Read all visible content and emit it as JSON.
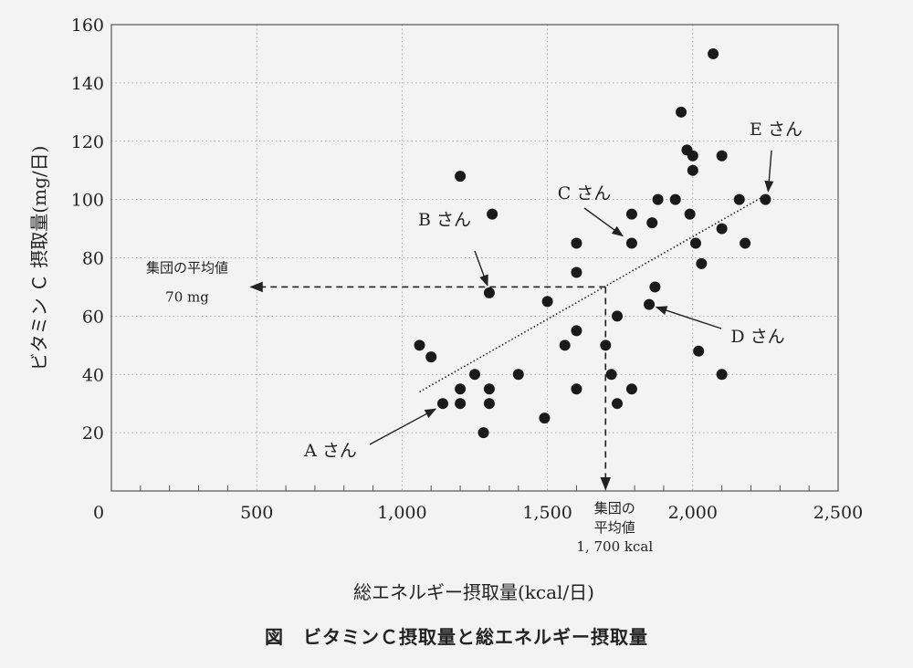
{
  "chart_data": {
    "type": "scatter",
    "title": "図　ビタミンＣ摂取量と総エネルギー摂取量",
    "xlabel": "総エネルギー摂取量(kcal/日)",
    "ylabel": "ビタミン Ｃ 摂取量(mg/日)",
    "xlim": [
      0,
      2500
    ],
    "ylim": [
      0,
      160
    ],
    "x_ticks": [
      0,
      500,
      1000,
      1500,
      2000,
      2500
    ],
    "x_tick_labels": [
      "0",
      "500",
      "1,000",
      "1,500",
      "2,000",
      "2,500"
    ],
    "y_ticks": [
      20,
      40,
      60,
      80,
      100,
      120,
      140,
      160
    ],
    "y_tick_labels": [
      "20",
      "40",
      "60",
      "80",
      "100",
      "120",
      "140",
      "160"
    ],
    "grid": true,
    "points": [
      {
        "x": 1060,
        "y": 50
      },
      {
        "x": 1100,
        "y": 46
      },
      {
        "x": 1140,
        "y": 30
      },
      {
        "x": 1200,
        "y": 108
      },
      {
        "x": 1200,
        "y": 35
      },
      {
        "x": 1200,
        "y": 30
      },
      {
        "x": 1250,
        "y": 40
      },
      {
        "x": 1280,
        "y": 20
      },
      {
        "x": 1300,
        "y": 68
      },
      {
        "x": 1300,
        "y": 35
      },
      {
        "x": 1300,
        "y": 30
      },
      {
        "x": 1310,
        "y": 95
      },
      {
        "x": 1400,
        "y": 40
      },
      {
        "x": 1490,
        "y": 25
      },
      {
        "x": 1500,
        "y": 65
      },
      {
        "x": 1560,
        "y": 50
      },
      {
        "x": 1600,
        "y": 85
      },
      {
        "x": 1600,
        "y": 75
      },
      {
        "x": 1600,
        "y": 55
      },
      {
        "x": 1600,
        "y": 35
      },
      {
        "x": 1700,
        "y": 50
      },
      {
        "x": 1720,
        "y": 40
      },
      {
        "x": 1740,
        "y": 60
      },
      {
        "x": 1740,
        "y": 30
      },
      {
        "x": 1790,
        "y": 95
      },
      {
        "x": 1790,
        "y": 85
      },
      {
        "x": 1790,
        "y": 35
      },
      {
        "x": 1850,
        "y": 64
      },
      {
        "x": 1860,
        "y": 92
      },
      {
        "x": 1870,
        "y": 70
      },
      {
        "x": 1880,
        "y": 100
      },
      {
        "x": 1940,
        "y": 100
      },
      {
        "x": 1960,
        "y": 130
      },
      {
        "x": 1980,
        "y": 117
      },
      {
        "x": 1990,
        "y": 95
      },
      {
        "x": 2000,
        "y": 115
      },
      {
        "x": 2000,
        "y": 110
      },
      {
        "x": 2010,
        "y": 85
      },
      {
        "x": 2020,
        "y": 48
      },
      {
        "x": 2030,
        "y": 78
      },
      {
        "x": 2070,
        "y": 150
      },
      {
        "x": 2100,
        "y": 115
      },
      {
        "x": 2100,
        "y": 90
      },
      {
        "x": 2100,
        "y": 40
      },
      {
        "x": 2160,
        "y": 100
      },
      {
        "x": 2180,
        "y": 85
      },
      {
        "x": 2250,
        "y": 100
      }
    ],
    "trend_line": {
      "x": [
        1060,
        2260
      ],
      "y": [
        34,
        102
      ]
    },
    "annotations": [
      {
        "label": "A さん",
        "point": {
          "x": 1140,
          "y": 30
        }
      },
      {
        "label": "B さん",
        "point": {
          "x": 1300,
          "y": 68
        }
      },
      {
        "label": "C さん",
        "point": {
          "x": 1790,
          "y": 85
        }
      },
      {
        "label": "D さん",
        "point": {
          "x": 1850,
          "y": 64
        }
      },
      {
        "label": "E さん",
        "point": {
          "x": 2250,
          "y": 100
        }
      }
    ],
    "mean_y": {
      "value": 70,
      "label_line1": "集団の平均値",
      "label_line2": "70 mg"
    },
    "mean_x": {
      "value": 1700,
      "label_line1": "集団の",
      "label_line2": "平均値",
      "label_line3": "1, 700 kcal"
    }
  }
}
